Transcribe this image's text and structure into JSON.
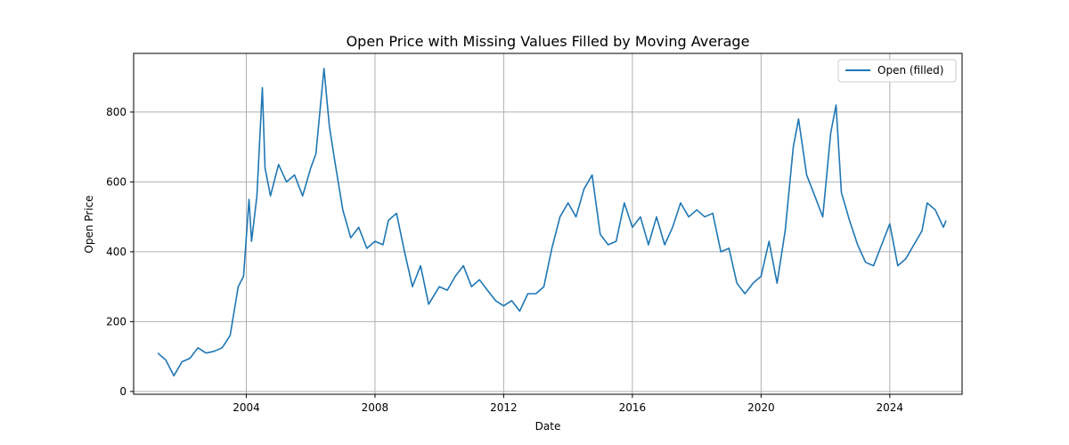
{
  "chart_data": {
    "type": "line",
    "title": "Open Price with Missing Values Filled by Moving Average",
    "xlabel": "Date",
    "ylabel": "Open Price",
    "xlim": [
      "2000-07-01",
      "2026-04-01"
    ],
    "ylim": [
      -8,
      968
    ],
    "x_ticks": [
      {
        "date": "2004-01-01",
        "label": "2004"
      },
      {
        "date": "2008-01-01",
        "label": "2008"
      },
      {
        "date": "2012-01-01",
        "label": "2012"
      },
      {
        "date": "2016-01-01",
        "label": "2016"
      },
      {
        "date": "2020-01-01",
        "label": "2020"
      },
      {
        "date": "2024-01-01",
        "label": "2024"
      }
    ],
    "y_ticks": [
      {
        "value": 0,
        "label": "0"
      },
      {
        "value": 200,
        "label": "200"
      },
      {
        "value": 400,
        "label": "400"
      },
      {
        "value": 600,
        "label": "600"
      },
      {
        "value": 800,
        "label": "800"
      }
    ],
    "grid": true,
    "legend_position": "top-right",
    "series": [
      {
        "name": "Open (filled)",
        "color": "#1f77b4",
        "points": [
          [
            "2001-04-01",
            110
          ],
          [
            "2001-07-01",
            90
          ],
          [
            "2001-10-01",
            45
          ],
          [
            "2002-01-01",
            85
          ],
          [
            "2002-04-01",
            95
          ],
          [
            "2002-07-01",
            125
          ],
          [
            "2002-10-01",
            110
          ],
          [
            "2003-01-01",
            115
          ],
          [
            "2003-04-01",
            125
          ],
          [
            "2003-07-01",
            160
          ],
          [
            "2003-10-01",
            300
          ],
          [
            "2003-12-01",
            330
          ],
          [
            "2004-02-01",
            550
          ],
          [
            "2004-03-01",
            430
          ],
          [
            "2004-05-01",
            560
          ],
          [
            "2004-07-01",
            870
          ],
          [
            "2004-08-01",
            640
          ],
          [
            "2004-10-01",
            560
          ],
          [
            "2005-01-01",
            650
          ],
          [
            "2005-04-01",
            600
          ],
          [
            "2005-07-01",
            620
          ],
          [
            "2005-10-01",
            560
          ],
          [
            "2006-01-01",
            640
          ],
          [
            "2006-03-01",
            680
          ],
          [
            "2006-06-01",
            925
          ],
          [
            "2006-08-01",
            760
          ],
          [
            "2006-10-01",
            660
          ],
          [
            "2007-01-01",
            520
          ],
          [
            "2007-04-01",
            440
          ],
          [
            "2007-07-01",
            470
          ],
          [
            "2007-10-01",
            410
          ],
          [
            "2008-01-01",
            430
          ],
          [
            "2008-04-01",
            420
          ],
          [
            "2008-06-01",
            490
          ],
          [
            "2008-09-01",
            510
          ],
          [
            "2008-12-01",
            400
          ],
          [
            "2009-03-01",
            300
          ],
          [
            "2009-06-01",
            360
          ],
          [
            "2009-09-01",
            250
          ],
          [
            "2010-01-01",
            300
          ],
          [
            "2010-04-01",
            290
          ],
          [
            "2010-07-01",
            330
          ],
          [
            "2010-10-01",
            360
          ],
          [
            "2011-01-01",
            300
          ],
          [
            "2011-04-01",
            320
          ],
          [
            "2011-07-01",
            290
          ],
          [
            "2011-10-01",
            260
          ],
          [
            "2012-01-01",
            245
          ],
          [
            "2012-04-01",
            260
          ],
          [
            "2012-07-01",
            230
          ],
          [
            "2012-10-01",
            280
          ],
          [
            "2013-01-01",
            280
          ],
          [
            "2013-04-01",
            300
          ],
          [
            "2013-07-01",
            410
          ],
          [
            "2013-10-01",
            500
          ],
          [
            "2014-01-01",
            540
          ],
          [
            "2014-04-01",
            500
          ],
          [
            "2014-07-01",
            580
          ],
          [
            "2014-10-01",
            620
          ],
          [
            "2015-01-01",
            450
          ],
          [
            "2015-04-01",
            420
          ],
          [
            "2015-07-01",
            430
          ],
          [
            "2015-10-01",
            540
          ],
          [
            "2016-01-01",
            470
          ],
          [
            "2016-04-01",
            500
          ],
          [
            "2016-07-01",
            420
          ],
          [
            "2016-10-01",
            500
          ],
          [
            "2017-01-01",
            420
          ],
          [
            "2017-04-01",
            470
          ],
          [
            "2017-07-01",
            540
          ],
          [
            "2017-10-01",
            500
          ],
          [
            "2018-01-01",
            520
          ],
          [
            "2018-04-01",
            500
          ],
          [
            "2018-07-01",
            510
          ],
          [
            "2018-10-01",
            400
          ],
          [
            "2019-01-01",
            410
          ],
          [
            "2019-04-01",
            310
          ],
          [
            "2019-07-01",
            280
          ],
          [
            "2019-10-01",
            310
          ],
          [
            "2020-01-01",
            330
          ],
          [
            "2020-04-01",
            430
          ],
          [
            "2020-07-01",
            310
          ],
          [
            "2020-10-01",
            460
          ],
          [
            "2021-01-01",
            700
          ],
          [
            "2021-03-01",
            780
          ],
          [
            "2021-06-01",
            620
          ],
          [
            "2021-09-01",
            560
          ],
          [
            "2021-12-01",
            500
          ],
          [
            "2022-03-01",
            740
          ],
          [
            "2022-05-01",
            820
          ],
          [
            "2022-07-01",
            570
          ],
          [
            "2022-10-01",
            490
          ],
          [
            "2023-01-01",
            420
          ],
          [
            "2023-04-01",
            370
          ],
          [
            "2023-07-01",
            360
          ],
          [
            "2023-10-01",
            420
          ],
          [
            "2024-01-01",
            480
          ],
          [
            "2024-04-01",
            360
          ],
          [
            "2024-07-01",
            380
          ],
          [
            "2024-10-01",
            420
          ],
          [
            "2025-01-01",
            460
          ],
          [
            "2025-03-01",
            540
          ],
          [
            "2025-06-01",
            520
          ],
          [
            "2025-09-01",
            470
          ],
          [
            "2025-10-01",
            490
          ]
        ]
      }
    ]
  }
}
